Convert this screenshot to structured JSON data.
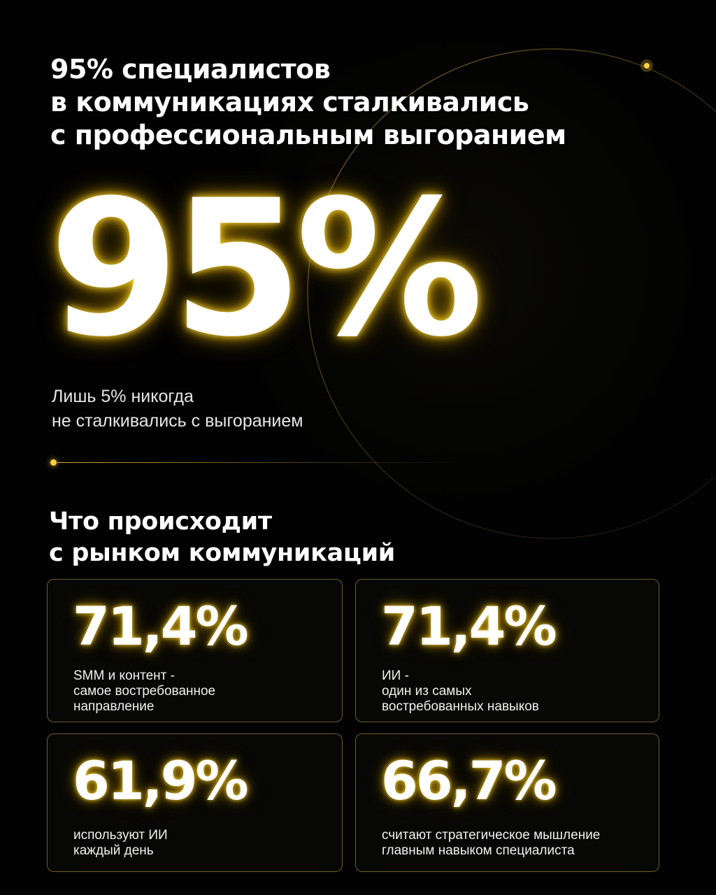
{
  "headline": {
    "line1": "95% специалистов",
    "line2": "в коммуникациях сталкивались",
    "line3": "с профессиональным выгоранием"
  },
  "hero": {
    "value": "95%",
    "note_line1": "Лишь 5% никогда",
    "note_line2": "не сталкивались с выгоранием"
  },
  "section": {
    "title_line1": "Что происходит",
    "title_line2": "с рынком коммуникаций"
  },
  "cards": [
    {
      "value": "71,4%",
      "desc_line1": "SMM и контент -",
      "desc_line2": "самое востребованное",
      "desc_line3": "направление"
    },
    {
      "value": "71,4%",
      "desc_line1": "ИИ -",
      "desc_line2": "один из самых",
      "desc_line3": "востребованных навыков"
    },
    {
      "value": "61,9%",
      "desc_line1": "используют ИИ",
      "desc_line2": "каждый день"
    },
    {
      "value": "66,7%",
      "desc_line1": "считают стратегическое мышление",
      "desc_line2": "главным навыком специалиста"
    }
  ],
  "colors": {
    "background": "#020202",
    "accent": "#ffd23a",
    "text": "#ffffff"
  }
}
